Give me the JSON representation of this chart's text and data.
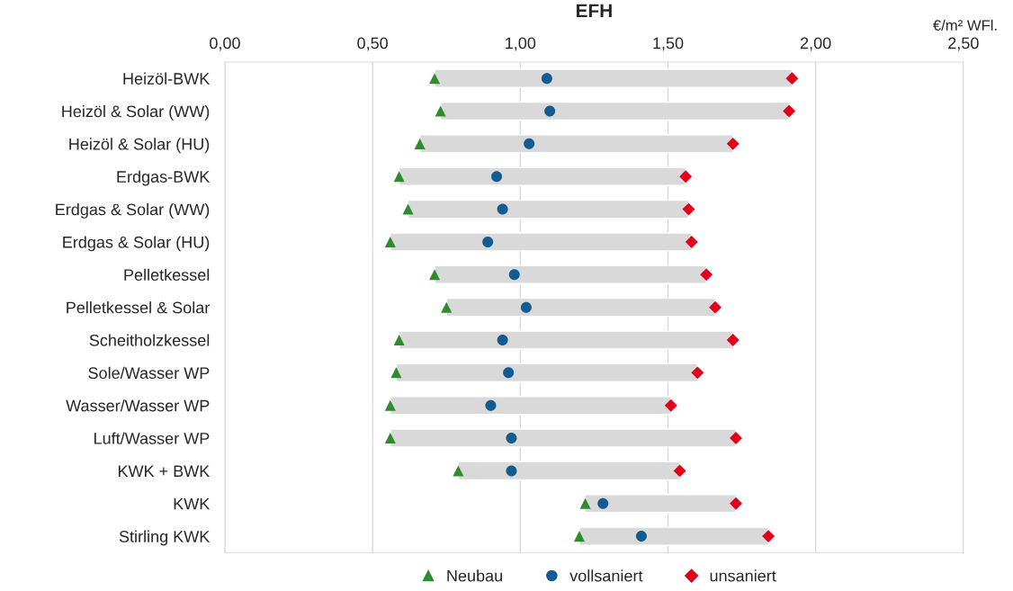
{
  "chart_data": {
    "type": "scatter",
    "orientation": "horizontal",
    "title": "EFH",
    "xlabel": "€/m² WFl.",
    "categories": [
      "Heizöl-BWK",
      "Heizöl & Solar (WW)",
      "Heizöl & Solar (HU)",
      "Erdgas-BWK",
      "Erdgas & Solar (WW)",
      "Erdgas & Solar (HU)",
      "Pelletkessel",
      "Pelletkessel & Solar",
      "Scheitholzkessel",
      "Sole/Wasser WP",
      "Wasser/Wasser WP",
      "Luft/Wasser WP",
      "KWK + BWK",
      "KWK",
      "Stirling KWK"
    ],
    "series": [
      {
        "type": "bar",
        "color": "#d9d9d9",
        "base": [
          0.71,
          0.73,
          0.66,
          0.59,
          0.62,
          0.56,
          0.71,
          0.75,
          0.59,
          0.58,
          0.56,
          0.56,
          0.79,
          1.22,
          1.2
        ],
        "values": [
          1.21,
          1.18,
          1.06,
          0.97,
          0.95,
          1.02,
          0.92,
          0.91,
          1.13,
          1.02,
          0.95,
          1.17,
          0.75,
          0.51,
          0.64
        ]
      },
      {
        "name": "Neubau",
        "color": "#2e8b2e",
        "marker": "triangle",
        "values": [
          0.71,
          0.73,
          0.66,
          0.59,
          0.62,
          0.56,
          0.71,
          0.75,
          0.59,
          0.58,
          0.56,
          0.56,
          0.79,
          1.22,
          1.2
        ]
      },
      {
        "name": "vollsaniert",
        "color": "#135c91",
        "marker": "circle",
        "values": [
          1.09,
          1.1,
          1.03,
          0.92,
          0.94,
          0.89,
          0.98,
          1.02,
          0.94,
          0.96,
          0.9,
          0.97,
          0.97,
          1.28,
          1.41
        ]
      },
      {
        "name": "unsaniert",
        "color": "#e2001a",
        "marker": "diamond",
        "values": [
          1.92,
          1.91,
          1.72,
          1.56,
          1.57,
          1.58,
          1.63,
          1.66,
          1.72,
          1.6,
          1.51,
          1.73,
          1.54,
          1.73,
          1.84
        ]
      }
    ],
    "xlim": [
      0,
      2.5
    ],
    "xticks": [
      {
        "value": 0,
        "label": "0,00"
      },
      {
        "value": 0.5,
        "label": "0,50"
      },
      {
        "value": 1,
        "label": "1,00"
      },
      {
        "value": 1.5,
        "label": "1,50"
      },
      {
        "value": 2,
        "label": "2,00"
      },
      {
        "value": 2.5,
        "label": "2,50"
      }
    ],
    "grid": "x",
    "legend": "bottom"
  }
}
